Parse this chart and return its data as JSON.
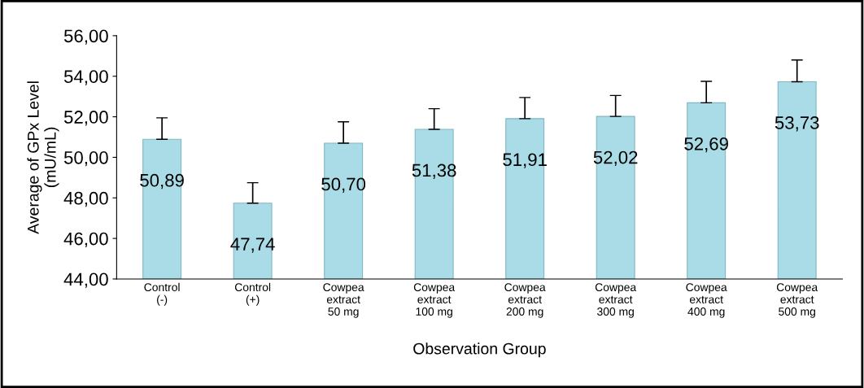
{
  "chart_data": {
    "type": "bar",
    "xlabel": "Observation Group",
    "ylabel": "Average of GPx Level\n(mU/mL)",
    "categories": [
      "Control\n(-)",
      "Control\n(+)",
      "Cowpea\nextract\n50 mg",
      "Cowpea\nextract\n100 mg",
      "Cowpea\nextract\n200 mg",
      "Cowpea\nextract\n300 mg",
      "Cowpea\nextract\n400 mg",
      "Cowpea\nextract\n500 mg"
    ],
    "values": [
      50.89,
      47.74,
      50.7,
      51.38,
      51.91,
      52.02,
      52.69,
      53.73
    ],
    "value_labels": [
      "50,89",
      "47,74",
      "50,70",
      "51,38",
      "51,91",
      "52,02",
      "52,69",
      "53,73"
    ],
    "errors": [
      [
        50.89,
        51.95
      ],
      [
        47.74,
        48.75
      ],
      [
        50.7,
        51.75
      ],
      [
        51.38,
        52.4
      ],
      [
        51.91,
        52.95
      ],
      [
        52.02,
        53.05
      ],
      [
        52.69,
        53.75
      ],
      [
        53.73,
        54.8
      ]
    ],
    "color": "#a9dce6",
    "ylim": [
      44,
      56
    ],
    "yticks": [
      {
        "value": 44,
        "label": "44,00"
      },
      {
        "value": 46,
        "label": "46,00"
      },
      {
        "value": 48,
        "label": "48,00"
      },
      {
        "value": 50,
        "label": "50,00"
      },
      {
        "value": 52,
        "label": "52,00"
      },
      {
        "value": 54,
        "label": "54,00"
      },
      {
        "value": 56,
        "label": "56,00"
      }
    ],
    "grid": false,
    "legend": false
  }
}
